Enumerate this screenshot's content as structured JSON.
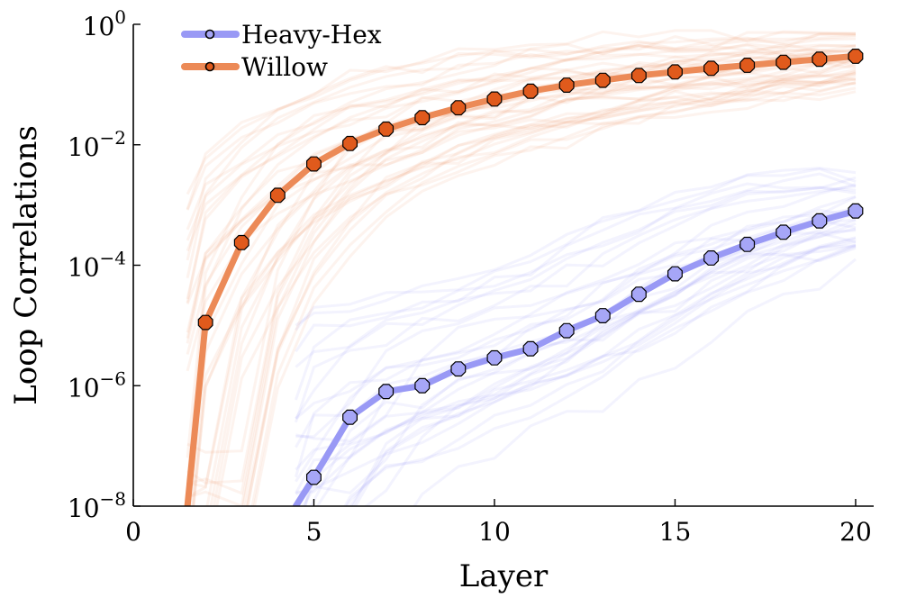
{
  "chart_data": {
    "type": "line",
    "xlabel": "Layer",
    "ylabel": "Loop Correlations",
    "xlim": [
      0,
      20.5
    ],
    "xticks": [
      0,
      5,
      10,
      15,
      20
    ],
    "yscale": "log",
    "ylim": [
      1e-08,
      1
    ],
    "yticks": [
      {
        "base": "10",
        "exp": "0",
        "value": 1
      },
      {
        "base": "10",
        "exp": "−2",
        "value": 0.01
      },
      {
        "base": "10",
        "exp": "−4",
        "value": 0.0001
      },
      {
        "base": "10",
        "exp": "−6",
        "value": 1e-06
      },
      {
        "base": "10",
        "exp": "−8",
        "value": 1e-08
      }
    ],
    "grid": false,
    "legend_position": "top-left",
    "series": [
      {
        "name": "Heavy-Hex",
        "color": "#9999f5",
        "marker_color": "#a6a6f7",
        "x": [
          4.5,
          5,
          6,
          7,
          8,
          9,
          10,
          11,
          12,
          13,
          14,
          15,
          16,
          17,
          18,
          19,
          20
        ],
        "y": [
          1e-08,
          3e-08,
          3e-07,
          8e-07,
          1e-06,
          1.9e-06,
          2.9e-06,
          4.1e-06,
          8.2e-06,
          1.45e-05,
          3.3e-05,
          7.2e-05,
          0.000132,
          0.000222,
          0.000353,
          0.000545,
          0.000795
        ],
        "marker_from_index": 1
      },
      {
        "name": "Willow",
        "color": "#ec8a57",
        "marker_color": "#e05a1c",
        "x": [
          1.5,
          2,
          3,
          4,
          5,
          6,
          7,
          8,
          9,
          10,
          11,
          12,
          13,
          14,
          15,
          16,
          17,
          18,
          19,
          20
        ],
        "y": [
          1e-08,
          1.12e-05,
          0.000238,
          0.00145,
          0.0048,
          0.0105,
          0.0182,
          0.0282,
          0.0412,
          0.0575,
          0.0776,
          0.0977,
          0.1175,
          0.1413,
          0.1622,
          0.1862,
          0.2089,
          0.2344,
          0.263,
          0.2951
        ],
        "marker_from_index": 1
      }
    ]
  }
}
